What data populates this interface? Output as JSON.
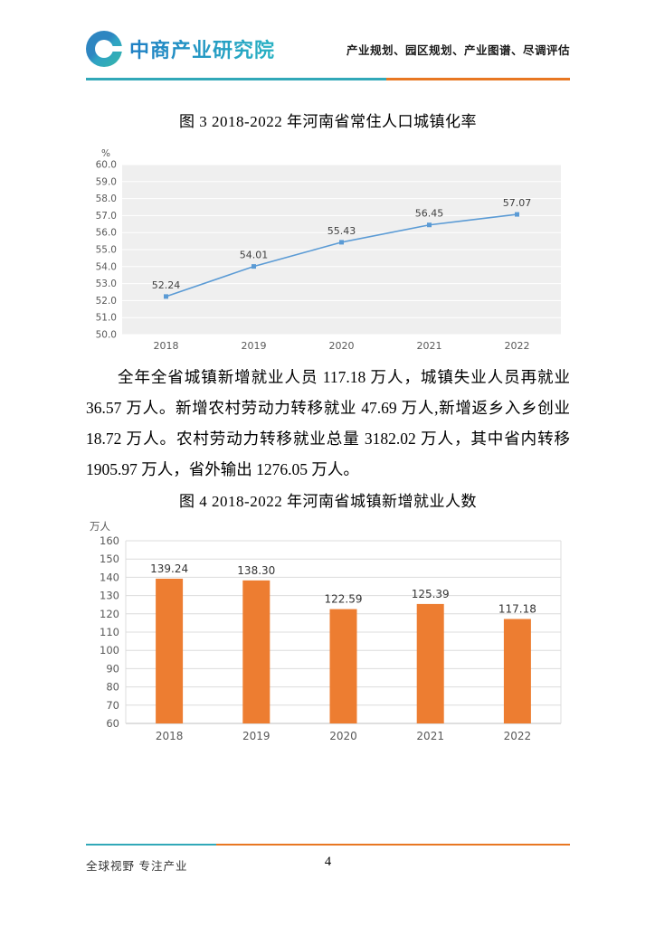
{
  "header": {
    "logo_text": "中商产业研究院",
    "tagline": "产业规划、园区规划、产业图谱、尽调评估"
  },
  "body": {
    "paragraph": "全年全省城镇新增就业人员 117.18 万人，城镇失业人员再就业 36.57 万人。新增农村劳动力转移就业 47.69 万人,新增返乡入乡创业 18.72 万人。农村劳动力转移就业总量 3182.02 万人，其中省内转移 1905.97 万人，省外输出 1276.05 万人。"
  },
  "footer": {
    "slogan": "全球视野 专注产业",
    "page_number": "4"
  },
  "colors": {
    "brand_teal": "#31a8b8",
    "brand_orange": "#e87722",
    "line_series": "#5b9bd5",
    "bar_series": "#ed7d31"
  },
  "chart_data": [
    {
      "type": "line",
      "title": "图 3 2018-2022 年河南省常住人口城镇化率",
      "ylabel": "%",
      "xlabel": "",
      "categories": [
        "2018",
        "2019",
        "2020",
        "2021",
        "2022"
      ],
      "values": [
        52.24,
        54.01,
        55.43,
        56.45,
        57.07
      ],
      "ylim": [
        50.0,
        60.0
      ],
      "ytick_step": 1.0,
      "grid": true,
      "legend": "none",
      "line_color": "#5b9bd5",
      "plot_bg": "#efefef"
    },
    {
      "type": "bar",
      "title": "图 4 2018-2022 年河南省城镇新增就业人数",
      "ylabel": "万人",
      "xlabel": "",
      "categories": [
        "2018",
        "2019",
        "2020",
        "2021",
        "2022"
      ],
      "values": [
        139.24,
        138.3,
        122.59,
        125.39,
        117.18
      ],
      "ylim": [
        60,
        160
      ],
      "ytick_step": 10,
      "grid": true,
      "legend": "none",
      "bar_color": "#ed7d31",
      "plot_bg": "#ffffff"
    }
  ]
}
